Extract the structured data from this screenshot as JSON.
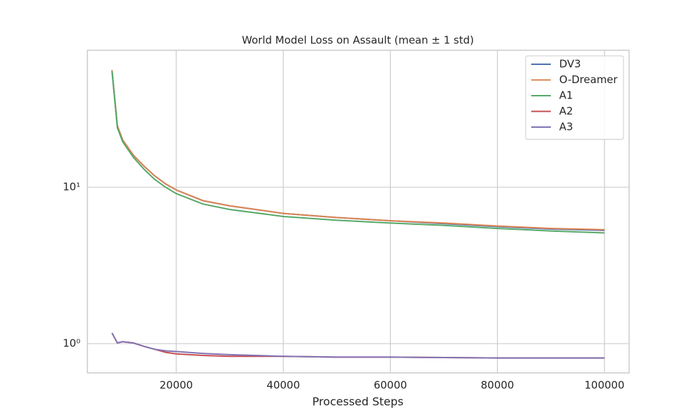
{
  "chart_data": {
    "type": "line",
    "title": "World Model Loss on Assault (mean ± 1 std)",
    "x_label": "Processed Steps",
    "x": [
      8000,
      9000,
      10000,
      12000,
      14000,
      16000,
      18000,
      20000,
      25000,
      30000,
      40000,
      50000,
      60000,
      70000,
      80000,
      90000,
      100000
    ],
    "series": [
      {
        "name": "DV3",
        "color": "#4c72b0",
        "values": [
          56,
          24.7,
          20,
          16,
          13.6,
          11.8,
          10.5,
          9.6,
          8.2,
          7.6,
          6.8,
          6.4,
          6.1,
          5.85,
          5.6,
          5.4,
          5.3
        ]
      },
      {
        "name": "O-Dreamer",
        "color": "#dd8452",
        "values": [
          56,
          24.7,
          20,
          16,
          13.6,
          11.8,
          10.5,
          9.6,
          8.2,
          7.6,
          6.8,
          6.4,
          6.1,
          5.9,
          5.65,
          5.45,
          5.35
        ]
      },
      {
        "name": "A1",
        "color": "#55a868",
        "values": [
          55,
          24,
          19.5,
          15.5,
          13,
          11.2,
          10,
          9.1,
          7.8,
          7.2,
          6.5,
          6.15,
          5.9,
          5.7,
          5.45,
          5.25,
          5.1
        ]
      },
      {
        "name": "A2",
        "color": "#c44e52",
        "values": [
          1.17,
          1.01,
          1.03,
          1.01,
          0.96,
          0.92,
          0.88,
          0.86,
          0.84,
          0.83,
          0.83,
          0.82,
          0.82,
          0.815,
          0.81,
          0.81,
          0.81
        ]
      },
      {
        "name": "A3",
        "color": "#8172b3",
        "values": [
          1.17,
          1.01,
          1.03,
          1.01,
          0.96,
          0.92,
          0.9,
          0.89,
          0.866,
          0.85,
          0.83,
          0.82,
          0.82,
          0.815,
          0.81,
          0.81,
          0.81
        ]
      }
    ],
    "xlim": [
      3400,
      104600
    ],
    "xticks": [
      20000,
      40000,
      60000,
      80000,
      100000
    ],
    "ylim": [
      0.65,
      75
    ],
    "yticks": [
      {
        "value": 1,
        "label": "10⁰"
      },
      {
        "value": 10,
        "label": "10¹"
      }
    ],
    "y_scale": "log",
    "grid": true,
    "legend": "upper right"
  }
}
